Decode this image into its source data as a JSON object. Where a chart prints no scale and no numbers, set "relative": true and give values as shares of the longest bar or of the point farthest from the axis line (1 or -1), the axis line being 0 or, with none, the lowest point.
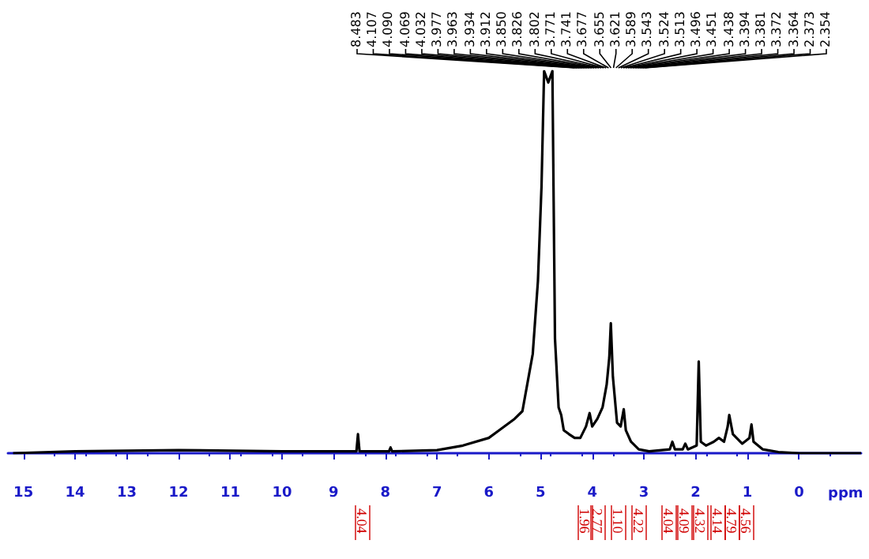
{
  "chart_data": {
    "type": "line",
    "relative": true,
    "xlabel": "ppm",
    "xlim": [
      15.3,
      -1.2
    ],
    "xticks": [
      15,
      14,
      13,
      12,
      11,
      10,
      9,
      8,
      7,
      6,
      5,
      4,
      3,
      2,
      1,
      0
    ],
    "grid": false,
    "marker": "none",
    "line_style": "solid",
    "series": [
      {
        "color": "#000000",
        "x": [
          15.2,
          14,
          12,
          10,
          9,
          8.56,
          8.53,
          8.5,
          7.93,
          7.9,
          7.87,
          7,
          6.5,
          6,
          5.8,
          5.5,
          5.35,
          5.15,
          5.05,
          4.98,
          4.93,
          4.85,
          4.77,
          4.72,
          4.65,
          4.6,
          4.55,
          4.45,
          4.34,
          4.23,
          4.12,
          4.05,
          4.0,
          3.9,
          3.8,
          3.72,
          3.67,
          3.64,
          3.6,
          3.52,
          3.45,
          3.39,
          3.35,
          3.25,
          3.1,
          2.9,
          2.5,
          2.45,
          2.4,
          2.25,
          2.2,
          2.15,
          1.98,
          1.94,
          1.9,
          1.8,
          1.65,
          1.55,
          1.45,
          1.38,
          1.35,
          1.28,
          1.1,
          0.96,
          0.92,
          0.88,
          0.7,
          0.4,
          0,
          -1.2
        ],
        "values": [
          0,
          0.005,
          0.008,
          0.005,
          0.005,
          0.005,
          0.05,
          0.005,
          0.005,
          0.015,
          0.005,
          0.008,
          0.02,
          0.04,
          0.06,
          0.09,
          0.11,
          0.26,
          0.45,
          0.7,
          1,
          0.97,
          1,
          0.3,
          0.12,
          0.1,
          0.06,
          0.05,
          0.04,
          0.04,
          0.07,
          0.105,
          0.07,
          0.09,
          0.12,
          0.18,
          0.25,
          0.34,
          0.2,
          0.08,
          0.07,
          0.115,
          0.06,
          0.03,
          0.01,
          0.005,
          0.01,
          0.03,
          0.01,
          0.01,
          0.025,
          0.01,
          0.02,
          0.24,
          0.03,
          0.02,
          0.03,
          0.04,
          0.03,
          0.07,
          0.1,
          0.05,
          0.025,
          0.04,
          0.075,
          0.03,
          0.01,
          0.003,
          0,
          0
        ]
      }
    ],
    "annotations": [
      "8.483",
      "4.107",
      "4.090",
      "4.069",
      "4.032",
      "3.977",
      "3.963",
      "3.934",
      "3.912",
      "3.850",
      "3.826",
      "3.802",
      "3.771",
      "3.741",
      "3.677",
      "3.655",
      "3.621",
      "3.589",
      "3.543",
      "3.524",
      "3.513",
      "3.496",
      "3.451",
      "3.438",
      "3.394",
      "3.381",
      "3.372",
      "3.364",
      "2.373",
      "2.354",
      {
        "text": "4.04"
      },
      {
        "text": "1.96"
      },
      {
        "text": "2.77"
      },
      {
        "text": "1.10"
      },
      {
        "text": "4.22"
      },
      {
        "text": "4.04"
      },
      {
        "text": "4.09"
      },
      {
        "text": "4.32"
      },
      {
        "text": "4.14"
      },
      {
        "text": "4.79"
      },
      {
        "text": "4.56"
      }
    ]
  }
}
